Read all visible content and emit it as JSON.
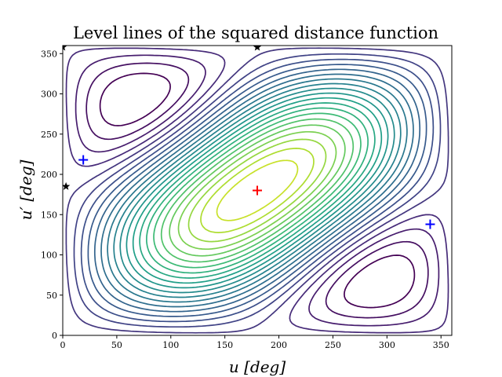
{
  "chart_data": {
    "type": "contour",
    "title": "Level lines of the squared distance function",
    "xlabel": "u [deg]",
    "ylabel": "u′ [deg]",
    "xlim": [
      0,
      360
    ],
    "ylim": [
      0,
      360
    ],
    "xticks": [
      0,
      50,
      100,
      150,
      200,
      250,
      300,
      350
    ],
    "yticks": [
      0,
      50,
      100,
      150,
      200,
      250,
      300,
      350
    ],
    "colormap": "viridis",
    "contour_levels": 24,
    "maximum_at": [
      180,
      180
    ],
    "points": {
      "red_plus": [
        [
          180,
          180
        ]
      ],
      "blue_plus": [
        [
          19,
          218
        ],
        [
          340,
          138
        ]
      ],
      "black_star": [
        [
          3,
          185
        ],
        [
          180,
          358
        ],
        [
          0,
          358
        ]
      ]
    },
    "colors": {
      "red_plus": "#ff0000",
      "blue_plus": "#0000ff",
      "black_star": "#000000"
    }
  }
}
